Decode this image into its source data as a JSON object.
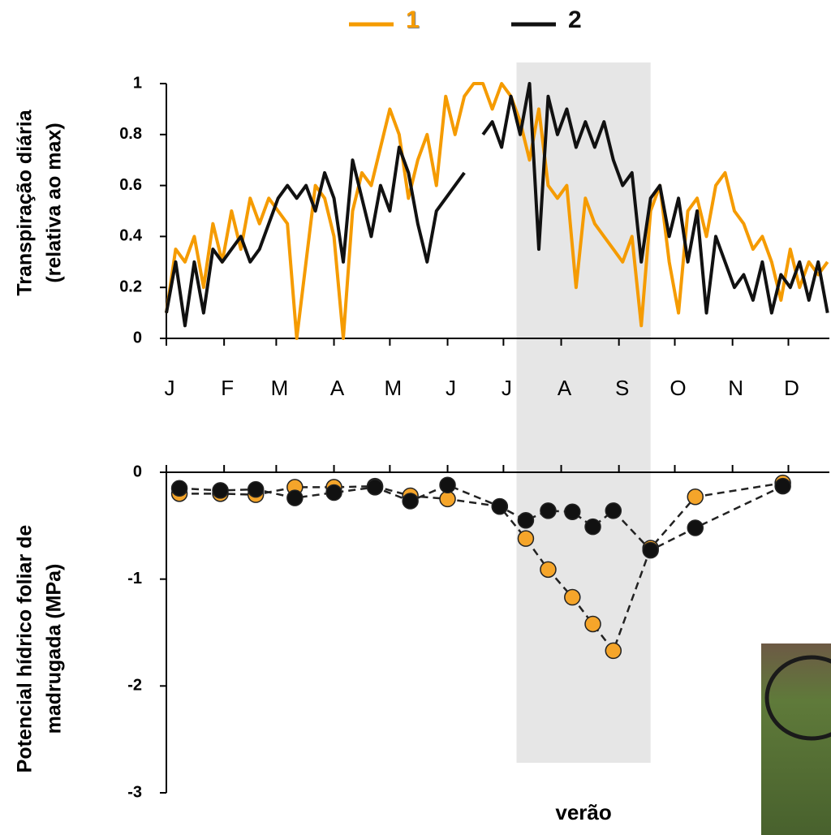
{
  "chart_data": [
    {
      "type": "line",
      "ylabel": [
        "Transpiração diária",
        "(relativa ao max)"
      ],
      "xlim": [
        0,
        356
      ],
      "xticks": [
        {
          "value": 0,
          "label": "J"
        },
        {
          "value": 31,
          "label": "F"
        },
        {
          "value": 59,
          "label": "M"
        },
        {
          "value": 90,
          "label": "A"
        },
        {
          "value": 120,
          "label": "M"
        },
        {
          "value": 151,
          "label": "J"
        },
        {
          "value": 181,
          "label": "J"
        },
        {
          "value": 212,
          "label": "A"
        },
        {
          "value": 243,
          "label": "S"
        },
        {
          "value": 273,
          "label": "O"
        },
        {
          "value": 304,
          "label": "N"
        },
        {
          "value": 334,
          "label": "D"
        }
      ],
      "ylim": [
        0,
        1
      ],
      "yticks": [
        0,
        0.2,
        0.4,
        0.6,
        0.8,
        1
      ],
      "x": [
        0,
        5,
        10,
        15,
        20,
        25,
        30,
        35,
        40,
        45,
        50,
        55,
        60,
        65,
        70,
        75,
        80,
        85,
        90,
        95,
        100,
        105,
        110,
        115,
        120,
        125,
        130,
        135,
        140,
        145,
        150,
        155,
        160,
        165,
        170,
        175,
        180,
        185,
        190,
        195,
        200,
        205,
        210,
        215,
        220,
        225,
        230,
        235,
        240,
        245,
        250,
        255,
        260,
        265,
        270,
        275,
        280,
        285,
        290,
        295,
        300,
        305,
        310,
        315,
        320,
        325,
        330,
        335,
        340,
        345,
        350,
        355
      ],
      "series": [
        {
          "name": "1",
          "color": "#f59b00",
          "values": [
            0.1,
            0.35,
            0.3,
            0.4,
            0.2,
            0.45,
            0.3,
            0.5,
            0.35,
            0.55,
            0.45,
            0.55,
            0.5,
            0.45,
            0,
            0.3,
            0.6,
            0.55,
            0.4,
            0,
            0.5,
            0.65,
            0.6,
            0.75,
            0.9,
            0.8,
            0.55,
            0.7,
            0.8,
            0.6,
            0.95,
            0.8,
            0.95,
            1,
            1,
            0.9,
            1,
            0.95,
            0.85,
            0.7,
            0.9,
            0.6,
            0.55,
            0.6,
            0.2,
            0.55,
            0.45,
            0.4,
            0.35,
            0.3,
            0.4,
            0.05,
            0.5,
            0.6,
            0.3,
            0.1,
            0.5,
            0.55,
            0.4,
            0.6,
            0.65,
            0.5,
            0.45,
            0.35,
            0.4,
            0.3,
            0.15,
            0.35,
            0.2,
            0.3,
            0.25,
            0.3
          ]
        },
        {
          "name": "2",
          "color": "#111111",
          "values": [
            0.1,
            0.3,
            0.05,
            0.3,
            0.1,
            0.35,
            0.3,
            0.35,
            0.4,
            0.3,
            0.35,
            0.45,
            0.55,
            0.6,
            0.55,
            0.6,
            0.5,
            0.65,
            0.55,
            0.3,
            0.7,
            0.55,
            0.4,
            0.6,
            0.5,
            0.75,
            0.65,
            0.45,
            0.3,
            0.5,
            0.55,
            0.6,
            0.65,
            null,
            0.8,
            0.85,
            0.75,
            0.95,
            0.8,
            1,
            0.35,
            0.95,
            0.8,
            0.9,
            0.75,
            0.85,
            0.75,
            0.85,
            0.7,
            0.6,
            0.65,
            0.3,
            0.55,
            0.6,
            0.4,
            0.55,
            0.3,
            0.5,
            0.1,
            0.4,
            0.3,
            0.2,
            0.25,
            0.15,
            0.3,
            0.1,
            0.25,
            0.2,
            0.3,
            0.15,
            0.3,
            0.1
          ]
        }
      ],
      "shaded": {
        "label": "verão",
        "x": [
          188,
          260
        ]
      }
    },
    {
      "type": "scatter",
      "ylabel": [
        "Potencial hídrico foliar de",
        "madrugada (MPa)"
      ],
      "xlim": [
        0,
        356
      ],
      "xticks": [
        0,
        31,
        59,
        90,
        120,
        151,
        181,
        212,
        243,
        273,
        304,
        334
      ],
      "ylim": [
        -3,
        0
      ],
      "yticks": [
        0,
        -1,
        -2,
        -3
      ],
      "x": [
        7,
        29,
        48,
        69,
        90,
        112,
        131,
        151,
        179,
        193,
        205,
        218,
        229,
        240,
        260,
        284,
        331
      ],
      "series": [
        {
          "name": "1",
          "color": "#f5a52a",
          "values": [
            -0.2,
            -0.2,
            -0.21,
            -0.14,
            -0.14,
            -0.13,
            -0.22,
            -0.25,
            -0.32,
            -0.62,
            -0.91,
            -1.17,
            -1.42,
            -1.67,
            -0.71,
            -0.23,
            -0.1
          ]
        },
        {
          "name": "2",
          "color": "#111111",
          "values": [
            -0.15,
            -0.17,
            -0.16,
            -0.24,
            -0.19,
            -0.14,
            -0.27,
            -0.12,
            -0.32,
            -0.45,
            -0.36,
            -0.37,
            -0.51,
            -0.36,
            -0.73,
            -0.52,
            -0.13
          ]
        }
      ]
    }
  ]
}
